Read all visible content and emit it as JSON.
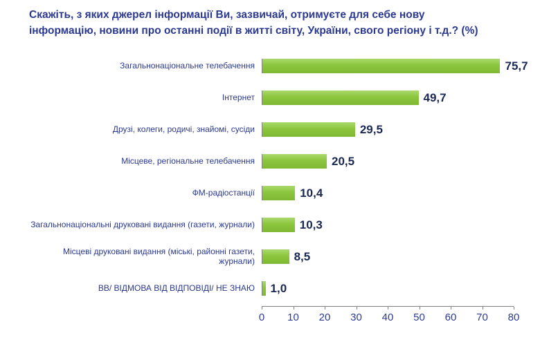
{
  "title": "Скажіть, з яких джерел інформації Ви, зазвичай, отримуєте для себе нову інформацію, новини про останні події в житті світу, України, свого регіону і т.д.? (%)",
  "colors": {
    "bar": "#8CC63E",
    "title": "#2B3990",
    "label": "#2B3990",
    "value": "#1A2853",
    "axis": "#808080"
  },
  "chart_data": {
    "type": "bar",
    "orientation": "horizontal",
    "title": "Скажіть, з яких джерел інформації Ви, зазвичай, отримуєте для себе нову інформацію, новини про останні події в житті світу, України, свого регіону і т.д.? (%)",
    "categories": [
      "Загальнонаціональне телебачення",
      "Інтернет",
      "Друзі, колеги, родичі, знайомі, сусіди",
      "Місцеве, регіональне телебачення",
      "ФМ-радіостанції",
      "Загальнонаціональні друковані видання (газети, журнали)",
      "Місцеві друковані видання (міські, районні газети, журнали)",
      "ВВ/ ВІДМОВА ВІД ВІДПОВІДІ/ НЕ ЗНАЮ"
    ],
    "values": [
      75.7,
      49.7,
      29.5,
      20.5,
      10.4,
      10.3,
      8.5,
      1.0
    ],
    "value_labels": [
      "75,7",
      "49,7",
      "29,5",
      "20,5",
      "10,4",
      "10,3",
      "8,5",
      "1,0"
    ],
    "xlim": [
      0,
      80
    ],
    "xticks": [
      0,
      10,
      20,
      30,
      40,
      50,
      60,
      70,
      80
    ],
    "grid": false,
    "legend": "none",
    "xlabel": "",
    "ylabel": ""
  }
}
